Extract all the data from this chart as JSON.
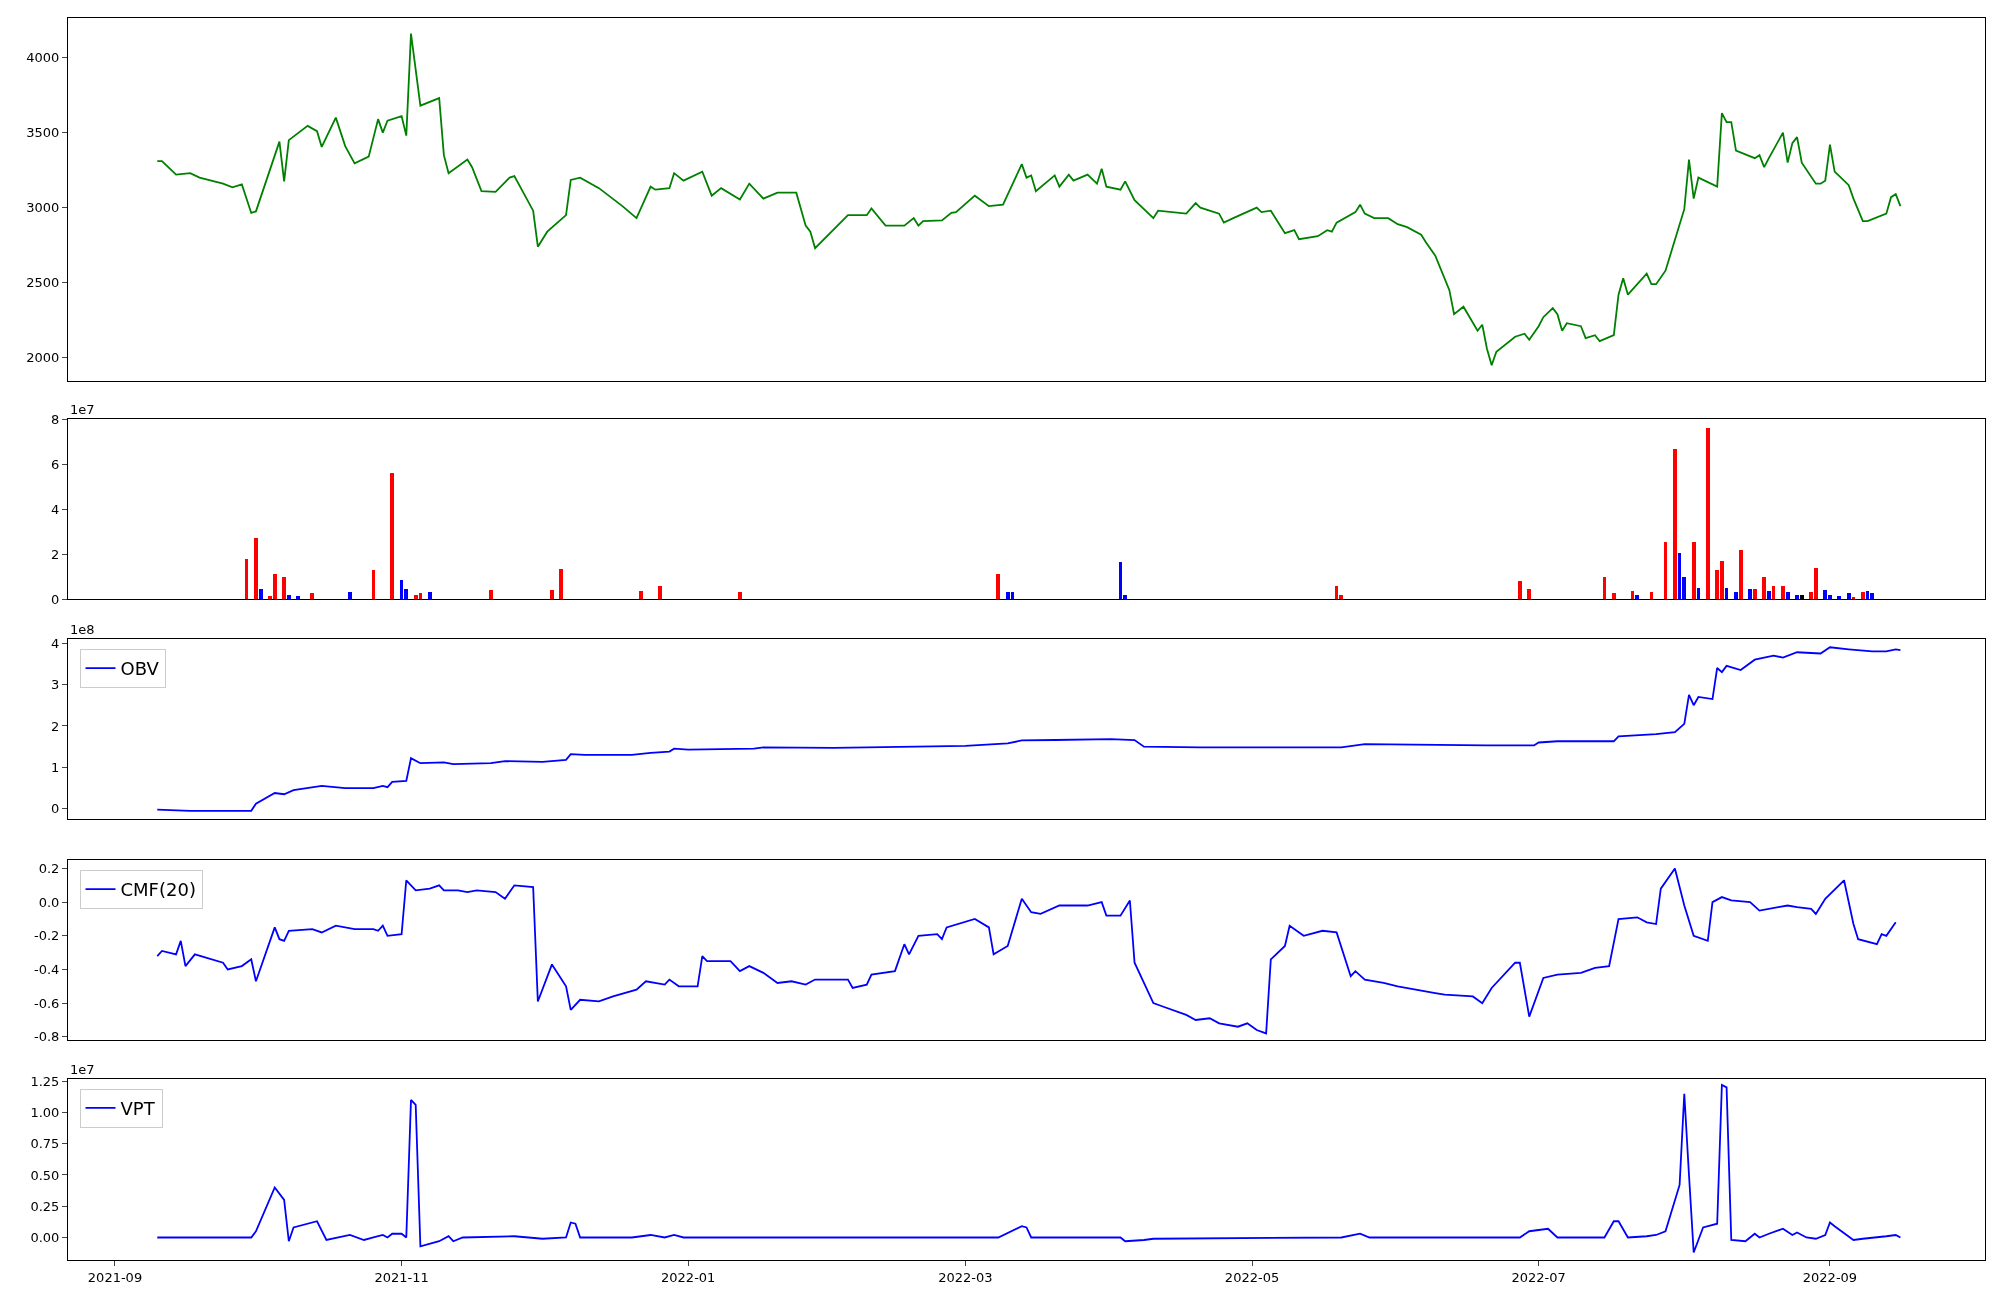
{
  "chart_data": [
    {
      "type": "line",
      "tick_labels": "y",
      "xlim": [
        "2021-08-22",
        "2022-10-04"
      ],
      "ylim": [
        1847,
        4264
      ],
      "yticks": [
        2000,
        2500,
        3000,
        3500,
        4000
      ],
      "series": [
        {
          "color": "#008000",
          "x": [
            "2021-09-10",
            "2021-09-11",
            "2021-09-14",
            "2021-09-17",
            "2021-09-19",
            "2021-09-24",
            "2021-09-26",
            "2021-09-28",
            "2021-09-30",
            "2021-10-01",
            "2021-10-06",
            "2021-10-07",
            "2021-10-08",
            "2021-10-12",
            "2021-10-14",
            "2021-10-15",
            "2021-10-18",
            "2021-10-20",
            "2021-10-22",
            "2021-10-25",
            "2021-10-27",
            "2021-10-28",
            "2021-10-29",
            "2021-11-01",
            "2021-11-02",
            "2021-11-03",
            "2021-11-05",
            "2021-11-09",
            "2021-11-10",
            "2021-11-11",
            "2021-11-15",
            "2021-11-16",
            "2021-11-18",
            "2021-11-21",
            "2021-11-24",
            "2021-11-25",
            "2021-11-29",
            "2021-11-30",
            "2021-12-02",
            "2021-12-06",
            "2021-12-07",
            "2021-12-09",
            "2021-12-13",
            "2021-12-18",
            "2021-12-21",
            "2021-12-24",
            "2021-12-25",
            "2021-12-28",
            "2021-12-29",
            "2021-12-31",
            "2022-01-04",
            "2022-01-06",
            "2022-01-08",
            "2022-01-12",
            "2022-01-14",
            "2022-01-17",
            "2022-01-20",
            "2022-01-24",
            "2022-01-26",
            "2022-01-27",
            "2022-01-28",
            "2022-02-04",
            "2022-02-08",
            "2022-02-09",
            "2022-02-12",
            "2022-02-16",
            "2022-02-18",
            "2022-02-19",
            "2022-02-20",
            "2022-02-24",
            "2022-02-26",
            "2022-02-27",
            "2022-03-03",
            "2022-03-06",
            "2022-03-09",
            "2022-03-13",
            "2022-03-14",
            "2022-03-15",
            "2022-03-16",
            "2022-03-20",
            "2022-03-21",
            "2022-03-23",
            "2022-03-24",
            "2022-03-27",
            "2022-03-29",
            "2022-03-30",
            "2022-03-31",
            "2022-04-03",
            "2022-04-04",
            "2022-04-06",
            "2022-04-10",
            "2022-04-11",
            "2022-04-17",
            "2022-04-19",
            "2022-04-20",
            "2022-04-24",
            "2022-04-25",
            "2022-04-27",
            "2022-05-02",
            "2022-05-03",
            "2022-05-05",
            "2022-05-08",
            "2022-05-10",
            "2022-05-11",
            "2022-05-15",
            "2022-05-17",
            "2022-05-18",
            "2022-05-19",
            "2022-05-23",
            "2022-05-24",
            "2022-05-25",
            "2022-05-27",
            "2022-05-30",
            "2022-06-01",
            "2022-06-03",
            "2022-06-06",
            "2022-06-07",
            "2022-06-09",
            "2022-06-12",
            "2022-06-13",
            "2022-06-15",
            "2022-06-18",
            "2022-06-19",
            "2022-06-20",
            "2022-06-21",
            "2022-06-22",
            "2022-06-26",
            "2022-06-28",
            "2022-06-29",
            "2022-07-01",
            "2022-07-02",
            "2022-07-04",
            "2022-07-05",
            "2022-07-06",
            "2022-07-07",
            "2022-07-10",
            "2022-07-11",
            "2022-07-13",
            "2022-07-14",
            "2022-07-17",
            "2022-07-18",
            "2022-07-19",
            "2022-07-20",
            "2022-07-24",
            "2022-07-25",
            "2022-07-26",
            "2022-07-28",
            "2022-08-01",
            "2022-08-02",
            "2022-08-03",
            "2022-08-04",
            "2022-08-08",
            "2022-08-09",
            "2022-08-10",
            "2022-08-11",
            "2022-08-12",
            "2022-08-16",
            "2022-08-17",
            "2022-08-18",
            "2022-08-19",
            "2022-08-22",
            "2022-08-23",
            "2022-08-24",
            "2022-08-25",
            "2022-08-26",
            "2022-08-29",
            "2022-08-30",
            "2022-08-31",
            "2022-09-01",
            "2022-09-02",
            "2022-09-05",
            "2022-09-06",
            "2022-09-08",
            "2022-09-09",
            "2022-09-13",
            "2022-09-14",
            "2022-09-15",
            "2022-09-16"
          ],
          "values": [
            3310,
            3310,
            3220,
            3230,
            3200,
            3160,
            3135,
            3155,
            2965,
            2975,
            3440,
            3175,
            3450,
            3545,
            3510,
            3405,
            3600,
            3410,
            3295,
            3340,
            3590,
            3500,
            3580,
            3610,
            3480,
            4160,
            3680,
            3730,
            3350,
            3230,
            3320,
            3270,
            3110,
            3105,
            3200,
            3210,
            2980,
            2740,
            2840,
            2950,
            3185,
            3200,
            3130,
            3010,
            2930,
            3140,
            3120,
            3130,
            3230,
            3180,
            3240,
            3080,
            3130,
            3055,
            3160,
            3060,
            3100,
            3100,
            2880,
            2840,
            2730,
            2950,
            2950,
            2995,
            2880,
            2880,
            2930,
            2880,
            2910,
            2915,
            2965,
            2970,
            3080,
            3010,
            3020,
            3290,
            3200,
            3215,
            3110,
            3215,
            3140,
            3220,
            3180,
            3220,
            3160,
            3260,
            3140,
            3120,
            3175,
            3050,
            2930,
            2980,
            2960,
            3030,
            3000,
            2960,
            2900,
            2930,
            3000,
            2970,
            2980,
            2830,
            2850,
            2790,
            2810,
            2850,
            2840,
            2900,
            2970,
            3020,
            2960,
            2930,
            2930,
            2890,
            2870,
            2820,
            2770,
            2680,
            2450,
            2290,
            2340,
            2180,
            2220,
            2060,
            1950,
            2040,
            2140,
            2160,
            2120,
            2210,
            2270,
            2330,
            2290,
            2180,
            2230,
            2210,
            2130,
            2150,
            2110,
            2150,
            2420,
            2530,
            2420,
            2560,
            2490,
            2490,
            2580,
            2990,
            3320,
            3060,
            3200,
            3140,
            3630,
            3570,
            3570,
            3380,
            3330,
            3350,
            3270,
            3330,
            3500,
            3300,
            3430,
            3470,
            3300,
            3160,
            3160,
            3180,
            3420,
            3240,
            3150,
            3060,
            2910,
            2910,
            2960,
            3070,
            3090,
            3010
          ]
        }
      ]
    },
    {
      "type": "bar",
      "tick_labels": "y",
      "xlim": [
        "2021-08-22",
        "2022-10-04"
      ],
      "ylim": [
        0,
        8
      ],
      "yticks": [
        0,
        2,
        4,
        6,
        8
      ],
      "annotations": [
        "1e7"
      ],
      "x": [
        "2021-09-29",
        "2021-10-01",
        "2021-10-02",
        "2021-10-04",
        "2021-10-05",
        "2021-10-07",
        "2021-10-08",
        "2021-10-10",
        "2021-10-13",
        "2021-10-21",
        "2021-10-26",
        "2021-10-30",
        "2021-11-01",
        "2021-11-02",
        "2021-11-04",
        "2021-11-05",
        "2021-11-07",
        "2021-11-20",
        "2021-12-03",
        "2021-12-05",
        "2021-12-22",
        "2021-12-26",
        "2022-01-12",
        "2022-03-08",
        "2022-03-10",
        "2022-03-11",
        "2022-04-03",
        "2022-04-04",
        "2022-05-19",
        "2022-05-20",
        "2022-06-27",
        "2022-06-29",
        "2022-07-15",
        "2022-07-17",
        "2022-07-21",
        "2022-07-22",
        "2022-07-25",
        "2022-07-28",
        "2022-07-30",
        "2022-07-31",
        "2022-08-01",
        "2022-08-03",
        "2022-08-04",
        "2022-08-06",
        "2022-08-08",
        "2022-08-09",
        "2022-08-10",
        "2022-08-12",
        "2022-08-13",
        "2022-08-15",
        "2022-08-16",
        "2022-08-18",
        "2022-08-19",
        "2022-08-20",
        "2022-08-22",
        "2022-08-23",
        "2022-08-25",
        "2022-08-26",
        "2022-08-28",
        "2022-08-29",
        "2022-08-31",
        "2022-09-01",
        "2022-09-03",
        "2022-09-05",
        "2022-09-06",
        "2022-09-08",
        "2022-09-09",
        "2022-09-10"
      ],
      "values": [
        1.8,
        2.7,
        0.45,
        0.15,
        1.1,
        1.0,
        0.2,
        0.15,
        0.25,
        0.3,
        1.3,
        5.6,
        0.85,
        0.45,
        0.2,
        0.25,
        0.3,
        0.4,
        0.4,
        1.35,
        0.35,
        0.6,
        0.3,
        1.1,
        0.3,
        0.3,
        1.65,
        0.2,
        0.6,
        0.2,
        0.8,
        0.45,
        1.0,
        0.25,
        0.35,
        0.2,
        0.3,
        2.55,
        6.65,
        2.05,
        1.0,
        2.55,
        0.5,
        7.6,
        1.3,
        1.7,
        0.5,
        0.3,
        2.2,
        0.45,
        0.45,
        1.0,
        0.35,
        0.6,
        0.6,
        0.3,
        0.2,
        0.2,
        0.3,
        1.4,
        0.4,
        0.2,
        0.15,
        0.25,
        0.1,
        0.3,
        0.35,
        0.25
      ],
      "colors": [
        "#ff0000",
        "#ff0000",
        "#0000ff",
        "#ff0000",
        "#ff0000",
        "#ff0000",
        "#0000ff",
        "#0000ff",
        "#ff0000",
        "#0000ff",
        "#ff0000",
        "#ff0000",
        "#0000ff",
        "#0000ff",
        "#ff0000",
        "#ff0000",
        "#0000ff",
        "#ff0000",
        "#ff0000",
        "#ff0000",
        "#ff0000",
        "#ff0000",
        "#ff0000",
        "#ff0000",
        "#0000ff",
        "#0000ff",
        "#0000ff",
        "#0000ff",
        "#ff0000",
        "#ff0000",
        "#ff0000",
        "#ff0000",
        "#ff0000",
        "#ff0000",
        "#ff0000",
        "#0000ff",
        "#ff0000",
        "#ff0000",
        "#ff0000",
        "#0000ff",
        "#0000ff",
        "#ff0000",
        "#0000ff",
        "#ff0000",
        "#ff0000",
        "#ff0000",
        "#0000ff",
        "#0000ff",
        "#ff0000",
        "#0000ff",
        "#ff0000",
        "#ff0000",
        "#0000ff",
        "#ff0000",
        "#ff0000",
        "#0000ff",
        "#0000ff",
        "#000000",
        "#ff0000",
        "#ff0000",
        "#0000ff",
        "#0000ff",
        "#0000ff",
        "#0000ff",
        "#ff0000",
        "#ff0000",
        "#0000ff",
        "#0000ff"
      ]
    },
    {
      "type": "line",
      "tick_labels": "y",
      "legend": "top left",
      "xlim": [
        "2021-08-22",
        "2022-10-04"
      ],
      "ylim": [
        -0.25,
        4.1
      ],
      "yticks": [
        0,
        1,
        2,
        3,
        4
      ],
      "annotations": [
        "1e8"
      ],
      "series": [
        {
          "name": "OBV",
          "color": "#0000ff",
          "x": [
            "2021-09-10",
            "2021-09-17",
            "2021-09-30",
            "2021-10-01",
            "2021-10-05",
            "2021-10-07",
            "2021-10-09",
            "2021-10-15",
            "2021-10-20",
            "2021-10-26",
            "2021-10-28",
            "2021-10-29",
            "2021-10-30",
            "2021-11-02",
            "2021-11-03",
            "2021-11-05",
            "2021-11-10",
            "2021-11-12",
            "2021-11-20",
            "2021-11-23",
            "2021-12-01",
            "2021-12-06",
            "2021-12-07",
            "2021-12-10",
            "2021-12-20",
            "2021-12-24",
            "2021-12-28",
            "2021-12-29",
            "2022-01-01",
            "2022-01-15",
            "2022-01-17",
            "2022-02-01",
            "2022-03-01",
            "2022-03-10",
            "2022-03-13",
            "2022-03-20",
            "2022-04-01",
            "2022-04-06",
            "2022-04-08",
            "2022-04-20",
            "2022-05-20",
            "2022-05-25",
            "2022-06-20",
            "2022-06-30",
            "2022-07-01",
            "2022-07-05",
            "2022-07-17",
            "2022-07-18",
            "2022-07-26",
            "2022-07-30",
            "2022-08-01",
            "2022-08-02",
            "2022-08-03",
            "2022-08-04",
            "2022-08-07",
            "2022-08-08",
            "2022-08-09",
            "2022-08-10",
            "2022-08-13",
            "2022-08-16",
            "2022-08-20",
            "2022-08-22",
            "2022-08-25",
            "2022-08-30",
            "2022-09-01",
            "2022-09-05",
            "2022-09-10",
            "2022-09-13",
            "2022-09-15",
            "2022-09-16"
          ],
          "values": [
            -0.02,
            -0.05,
            -0.05,
            0.12,
            0.38,
            0.35,
            0.45,
            0.55,
            0.5,
            0.5,
            0.55,
            0.52,
            0.65,
            0.67,
            1.22,
            1.1,
            1.12,
            1.08,
            1.1,
            1.15,
            1.13,
            1.18,
            1.32,
            1.3,
            1.3,
            1.35,
            1.38,
            1.45,
            1.43,
            1.45,
            1.48,
            1.47,
            1.52,
            1.58,
            1.65,
            1.66,
            1.68,
            1.66,
            1.5,
            1.48,
            1.48,
            1.56,
            1.53,
            1.53,
            1.6,
            1.63,
            1.63,
            1.75,
            1.8,
            1.85,
            2.05,
            2.75,
            2.5,
            2.7,
            2.65,
            3.4,
            3.3,
            3.45,
            3.35,
            3.6,
            3.7,
            3.65,
            3.78,
            3.75,
            3.9,
            3.85,
            3.8,
            3.8,
            3.85,
            3.83
          ]
        }
      ]
    },
    {
      "type": "line",
      "tick_labels": "y",
      "legend": "top left",
      "xlim": [
        "2021-08-22",
        "2022-10-04"
      ],
      "ylim": [
        -0.82,
        0.25
      ],
      "yticks": [
        -0.8,
        -0.6,
        -0.4,
        -0.2,
        {
          "value": 0,
          "label": "0.0"
        },
        0.2
      ],
      "series": [
        {
          "name": "CMF(20)",
          "color": "#0000ff",
          "x": [
            "2021-09-10",
            "2021-09-11",
            "2021-09-14",
            "2021-09-15",
            "2021-09-16",
            "2021-09-18",
            "2021-09-24",
            "2021-09-25",
            "2021-09-28",
            "2021-09-30",
            "2021-10-01",
            "2021-10-05",
            "2021-10-06",
            "2021-10-07",
            "2021-10-08",
            "2021-10-13",
            "2021-10-15",
            "2021-10-18",
            "2021-10-22",
            "2021-10-26",
            "2021-10-27",
            "2021-10-28",
            "2021-10-29",
            "2021-11-01",
            "2021-11-02",
            "2021-11-04",
            "2021-11-07",
            "2021-11-09",
            "2021-11-10",
            "2021-11-13",
            "2021-11-15",
            "2021-11-17",
            "2021-11-21",
            "2021-11-23",
            "2021-11-25",
            "2021-11-29",
            "2021-11-30",
            "2021-12-03",
            "2021-12-06",
            "2021-12-07",
            "2021-12-09",
            "2021-12-13",
            "2021-12-16",
            "2021-12-21",
            "2021-12-23",
            "2021-12-27",
            "2021-12-28",
            "2021-12-30",
            "2022-01-03",
            "2022-01-04",
            "2022-01-05",
            "2022-01-10",
            "2022-01-12",
            "2022-01-14",
            "2022-01-17",
            "2022-01-20",
            "2022-01-23",
            "2022-01-26",
            "2022-01-28",
            "2022-02-04",
            "2022-02-05",
            "2022-02-08",
            "2022-02-09",
            "2022-02-14",
            "2022-02-16",
            "2022-02-17",
            "2022-02-19",
            "2022-02-23",
            "2022-02-24",
            "2022-02-25",
            "2022-03-03",
            "2022-03-06",
            "2022-03-07",
            "2022-03-10",
            "2022-03-13",
            "2022-03-15",
            "2022-03-17",
            "2022-03-21",
            "2022-03-24",
            "2022-03-27",
            "2022-03-30",
            "2022-03-31",
            "2022-04-03",
            "2022-04-05",
            "2022-04-06",
            "2022-04-10",
            "2022-04-12",
            "2022-04-17",
            "2022-04-19",
            "2022-04-22",
            "2022-04-24",
            "2022-04-28",
            "2022-04-30",
            "2022-05-02",
            "2022-05-04",
            "2022-05-05",
            "2022-05-08",
            "2022-05-09",
            "2022-05-12",
            "2022-05-16",
            "2022-05-19",
            "2022-05-22",
            "2022-05-23",
            "2022-05-25",
            "2022-05-29",
            "2022-06-01",
            "2022-06-09",
            "2022-06-11",
            "2022-06-17",
            "2022-06-19",
            "2022-06-21",
            "2022-06-26",
            "2022-06-27",
            "2022-06-29",
            "2022-07-02",
            "2022-07-05",
            "2022-07-10",
            "2022-07-13",
            "2022-07-16",
            "2022-07-18",
            "2022-07-22",
            "2022-07-24",
            "2022-07-26",
            "2022-07-27",
            "2022-07-30",
            "2022-08-01",
            "2022-08-03",
            "2022-08-06",
            "2022-08-07",
            "2022-08-09",
            "2022-08-11",
            "2022-08-15",
            "2022-08-17",
            "2022-08-21",
            "2022-08-23",
            "2022-08-25",
            "2022-08-28",
            "2022-08-29",
            "2022-08-31",
            "2022-09-04",
            "2022-09-06",
            "2022-09-07",
            "2022-09-11",
            "2022-09-12",
            "2022-09-13",
            "2022-09-15"
          ],
          "values": [
            -0.32,
            -0.29,
            -0.31,
            -0.23,
            -0.38,
            -0.31,
            -0.36,
            -0.4,
            -0.38,
            -0.34,
            -0.47,
            -0.15,
            -0.22,
            -0.23,
            -0.17,
            -0.16,
            -0.18,
            -0.14,
            -0.16,
            -0.16,
            -0.17,
            -0.14,
            -0.2,
            -0.19,
            0.13,
            0.07,
            0.08,
            0.1,
            0.07,
            0.07,
            0.06,
            0.07,
            0.06,
            0.02,
            0.1,
            0.09,
            -0.59,
            -0.37,
            -0.5,
            -0.64,
            -0.58,
            -0.59,
            -0.56,
            -0.52,
            -0.47,
            -0.49,
            -0.46,
            -0.5,
            -0.5,
            -0.32,
            -0.35,
            -0.35,
            -0.41,
            -0.38,
            -0.42,
            -0.48,
            -0.47,
            -0.49,
            -0.46,
            -0.46,
            -0.51,
            -0.49,
            -0.43,
            -0.41,
            -0.25,
            -0.31,
            -0.2,
            -0.19,
            -0.22,
            -0.15,
            -0.1,
            -0.15,
            -0.31,
            -0.26,
            0.02,
            -0.06,
            -0.07,
            -0.02,
            -0.02,
            -0.02,
            0.0,
            -0.08,
            -0.08,
            0.01,
            -0.36,
            -0.6,
            -0.62,
            -0.67,
            -0.7,
            -0.69,
            -0.72,
            -0.74,
            -0.72,
            -0.76,
            -0.78,
            -0.34,
            -0.26,
            -0.14,
            -0.2,
            -0.17,
            -0.18,
            -0.44,
            -0.41,
            -0.46,
            -0.48,
            -0.5,
            -0.54,
            -0.55,
            -0.56,
            -0.6,
            -0.51,
            -0.36,
            -0.36,
            -0.68,
            -0.45,
            -0.43,
            -0.42,
            -0.39,
            -0.38,
            -0.1,
            -0.09,
            -0.12,
            -0.13,
            0.08,
            0.2,
            -0.02,
            -0.2,
            -0.23,
            0.0,
            0.03,
            0.01,
            0.0,
            -0.05,
            -0.03,
            -0.02,
            -0.03,
            -0.04,
            -0.07,
            0.02,
            0.13,
            -0.13,
            -0.22,
            -0.25,
            -0.19,
            -0.2,
            -0.12
          ]
        }
      ]
    },
    {
      "type": "line",
      "legend": "top left",
      "xlim": [
        "2021-08-22",
        "2022-10-04"
      ],
      "xticks": [
        "2021-09",
        "2021-11",
        "2022-01",
        "2022-03",
        "2022-05",
        "2022-07",
        "2022-09"
      ],
      "ylim": [
        -0.18,
        1.27
      ],
      "yticks": [
        {
          "value": 0,
          "label": "0.00"
        },
        0.25,
        {
          "value": 0.5,
          "label": "0.50"
        },
        0.75,
        {
          "value": 1,
          "label": "1.00"
        },
        1.25
      ],
      "annotations": [
        "1e7"
      ],
      "series": [
        {
          "name": "VPT",
          "color": "#0000ff",
          "x": [
            "2021-09-10",
            "2021-09-30",
            "2021-10-01",
            "2021-10-05",
            "2021-10-07",
            "2021-10-08",
            "2021-10-09",
            "2021-10-14",
            "2021-10-16",
            "2021-10-21",
            "2021-10-24",
            "2021-10-26",
            "2021-10-28",
            "2021-10-29",
            "2021-10-30",
            "2021-11-01",
            "2021-11-02",
            "2021-11-03",
            "2021-11-04",
            "2021-11-05",
            "2021-11-09",
            "2021-11-11",
            "2021-11-12",
            "2021-11-14",
            "2021-11-25",
            "2021-12-01",
            "2021-12-06",
            "2021-12-07",
            "2021-12-08",
            "2021-12-09",
            "2021-12-20",
            "2021-12-24",
            "2021-12-27",
            "2021-12-29",
            "2021-12-31",
            "2022-03-08",
            "2022-03-13",
            "2022-03-14",
            "2022-03-15",
            "2022-04-03",
            "2022-04-04",
            "2022-04-08",
            "2022-04-10",
            "2022-05-20",
            "2022-05-24",
            "2022-05-26",
            "2022-06-27",
            "2022-06-29",
            "2022-07-03",
            "2022-07-05",
            "2022-07-15",
            "2022-07-17",
            "2022-07-18",
            "2022-07-20",
            "2022-07-24",
            "2022-07-26",
            "2022-07-28",
            "2022-07-31",
            "2022-08-01",
            "2022-08-02",
            "2022-08-03",
            "2022-08-05",
            "2022-08-08",
            "2022-08-09",
            "2022-08-10",
            "2022-08-11",
            "2022-08-14",
            "2022-08-16",
            "2022-08-17",
            "2022-08-19",
            "2022-08-22",
            "2022-08-24",
            "2022-08-25",
            "2022-08-27",
            "2022-08-29",
            "2022-08-31",
            "2022-09-01",
            "2022-09-02",
            "2022-09-06",
            "2022-09-08",
            "2022-09-13",
            "2022-09-15",
            "2022-09-16"
          ],
          "values": [
            0,
            0,
            0.05,
            0.4,
            0.3,
            -0.03,
            0.08,
            0.13,
            -0.02,
            0.02,
            -0.02,
            0.0,
            0.02,
            0.0,
            0.03,
            0.03,
            0.0,
            1.1,
            1.06,
            -0.07,
            -0.03,
            0.01,
            -0.03,
            0.0,
            0.01,
            -0.01,
            0.0,
            0.12,
            0.11,
            0.0,
            0.0,
            0.02,
            0.0,
            0.02,
            0.0,
            0.0,
            0.09,
            0.08,
            0.0,
            0.0,
            -0.03,
            -0.02,
            -0.01,
            0.0,
            0.03,
            0.0,
            0.0,
            0.05,
            0.07,
            0.0,
            0.0,
            0.13,
            0.13,
            0.0,
            0.01,
            0.02,
            0.05,
            0.42,
            1.15,
            0.5,
            -0.12,
            0.08,
            0.11,
            1.22,
            1.2,
            -0.02,
            -0.03,
            0.03,
            0.0,
            0.03,
            0.07,
            0.02,
            0.04,
            0.0,
            -0.01,
            0.02,
            0.12,
            0.09,
            -0.02,
            -0.01,
            0.01,
            0.02,
            0.0
          ]
        }
      ]
    }
  ]
}
